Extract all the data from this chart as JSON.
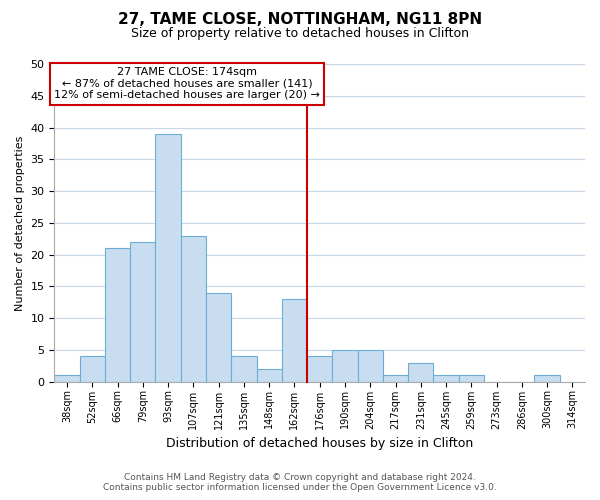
{
  "title": "27, TAME CLOSE, NOTTINGHAM, NG11 8PN",
  "subtitle": "Size of property relative to detached houses in Clifton",
  "xlabel": "Distribution of detached houses by size in Clifton",
  "ylabel": "Number of detached properties",
  "bin_labels": [
    "38sqm",
    "52sqm",
    "66sqm",
    "79sqm",
    "93sqm",
    "107sqm",
    "121sqm",
    "135sqm",
    "148sqm",
    "162sqm",
    "176sqm",
    "190sqm",
    "204sqm",
    "217sqm",
    "231sqm",
    "245sqm",
    "259sqm",
    "273sqm",
    "286sqm",
    "300sqm",
    "314sqm"
  ],
  "bar_values": [
    1,
    4,
    21,
    22,
    39,
    23,
    14,
    4,
    2,
    13,
    4,
    5,
    5,
    1,
    3,
    1,
    1,
    0,
    0,
    1
  ],
  "bar_color": "#c8ddf0",
  "bar_edge_color": "#6baed6",
  "vline_color": "#cc0000",
  "annotation_text": "27 TAME CLOSE: 174sqm\n← 87% of detached houses are smaller (141)\n12% of semi-detached houses are larger (20) →",
  "annotation_box_color": "#ffffff",
  "annotation_box_edge": "#cc0000",
  "ylim": [
    0,
    50
  ],
  "yticks": [
    0,
    5,
    10,
    15,
    20,
    25,
    30,
    35,
    40,
    45,
    50
  ],
  "footer_line1": "Contains HM Land Registry data © Crown copyright and database right 2024.",
  "footer_line2": "Contains public sector information licensed under the Open Government Licence v3.0.",
  "bg_color": "#ffffff",
  "grid_color": "#c8d8e8"
}
